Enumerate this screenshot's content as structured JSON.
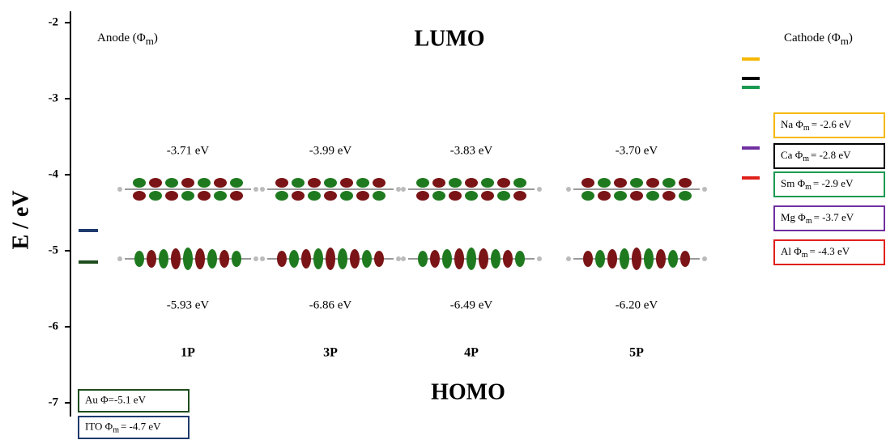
{
  "axis": {
    "label": "E / eV",
    "lim": [
      -7.15,
      -1.85
    ],
    "ticks": [
      -2,
      -3,
      -4,
      -5,
      -6,
      -7
    ]
  },
  "anode_title": {
    "text": "Anode (Φ",
    "sub": "m",
    "close": ")"
  },
  "cathode_title": {
    "text": "Cathode (Φ",
    "sub": "m",
    "close": ")"
  },
  "lumo_title": "LUMO",
  "homo_title": "HOMO",
  "molecules": [
    {
      "name": "1P",
      "lumo": "-3.71 eV",
      "homo": "-5.93 eV"
    },
    {
      "name": "3P",
      "lumo": "-3.99 eV",
      "homo": "-6.86 eV"
    },
    {
      "name": "4P",
      "lumo": "-3.83 eV",
      "homo": "-6.49 eV"
    },
    {
      "name": "5P",
      "lumo": "-3.70 eV",
      "homo": "-6.20 eV"
    }
  ],
  "cathodes": [
    {
      "pre": "Na Φ",
      "sub": "m",
      "post": "= -2.6 eV"
    },
    {
      "pre": "Ca Φ",
      "sub": "m",
      "post": "= -2.8 eV"
    },
    {
      "pre": "Sm Φ",
      "sub": "m",
      "post": "= -2.9 eV"
    },
    {
      "pre": "Mg Φ",
      "sub": "m",
      "post": "= -3.7 eV"
    },
    {
      "pre": "Al Φ",
      "sub": "m",
      "post": "= -4.3 eV"
    }
  ],
  "anodes": [
    {
      "pre": "Au Φ=-5.1 eV"
    },
    {
      "pre": "ITO Φ",
      "sub": "m",
      "post": "= -4.7 eV"
    }
  ]
}
